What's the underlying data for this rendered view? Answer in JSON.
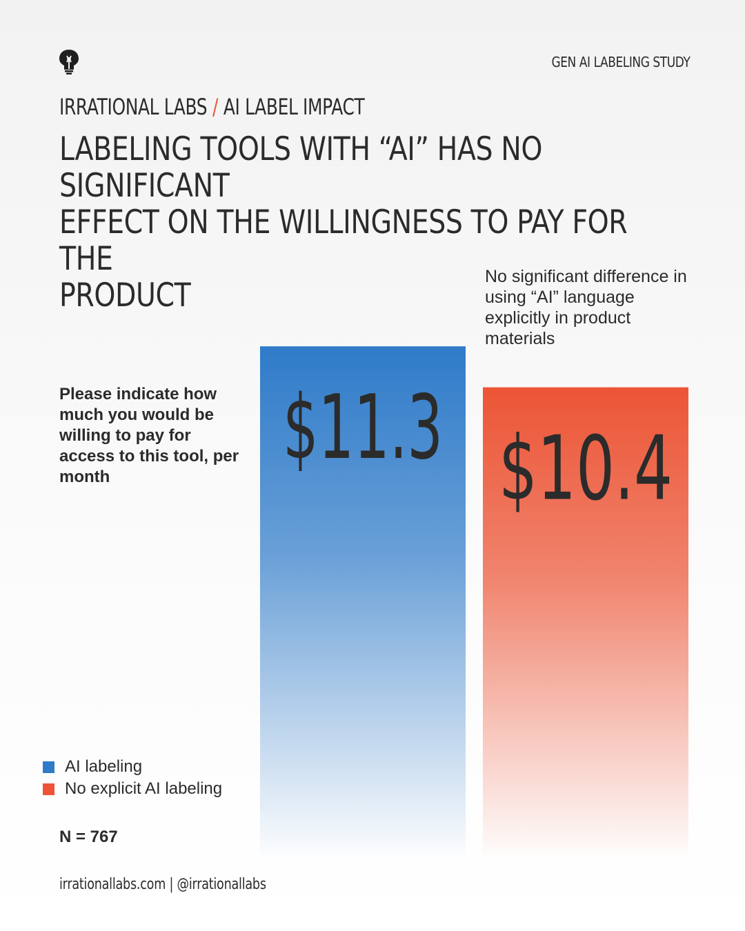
{
  "header": {
    "study_tag": "GEN AI LABELING STUDY",
    "brand": "IRRATIONAL LABS",
    "separator": "/",
    "section": "AI LABEL IMPACT",
    "headline_lines": [
      "LABELING TOOLS WITH “AI” HAS NO SIGNIFICANT",
      "EFFECT ON THE WILLINGNESS TO PAY FOR THE",
      "PRODUCT"
    ]
  },
  "question": "Please indicate how much you would be willing to pay for access to this tool, per month",
  "note": "No significant difference in using “AI” language explicitly in product materials",
  "sample_size": "N = 767",
  "footer": "irrationallabs.com | @irrationallabs",
  "colors": {
    "blue": "#2f7bc9",
    "red": "#ec5536",
    "accent": "#e9553a",
    "text": "#2b2b2b"
  },
  "icons": {
    "logo": "lightbulb-head-icon"
  },
  "chart_data": {
    "type": "bar",
    "categories": [
      "AI labeling",
      "No explicit AI labeling"
    ],
    "values": [
      11.3,
      10.4
    ],
    "data_labels": [
      "$11.3",
      "$10.4"
    ],
    "colors": [
      "#2f7bc9",
      "#ec5536"
    ],
    "legend": [
      "AI labeling",
      "No explicit AI labeling"
    ],
    "legend_position": "bottom-left",
    "grid": false
  }
}
